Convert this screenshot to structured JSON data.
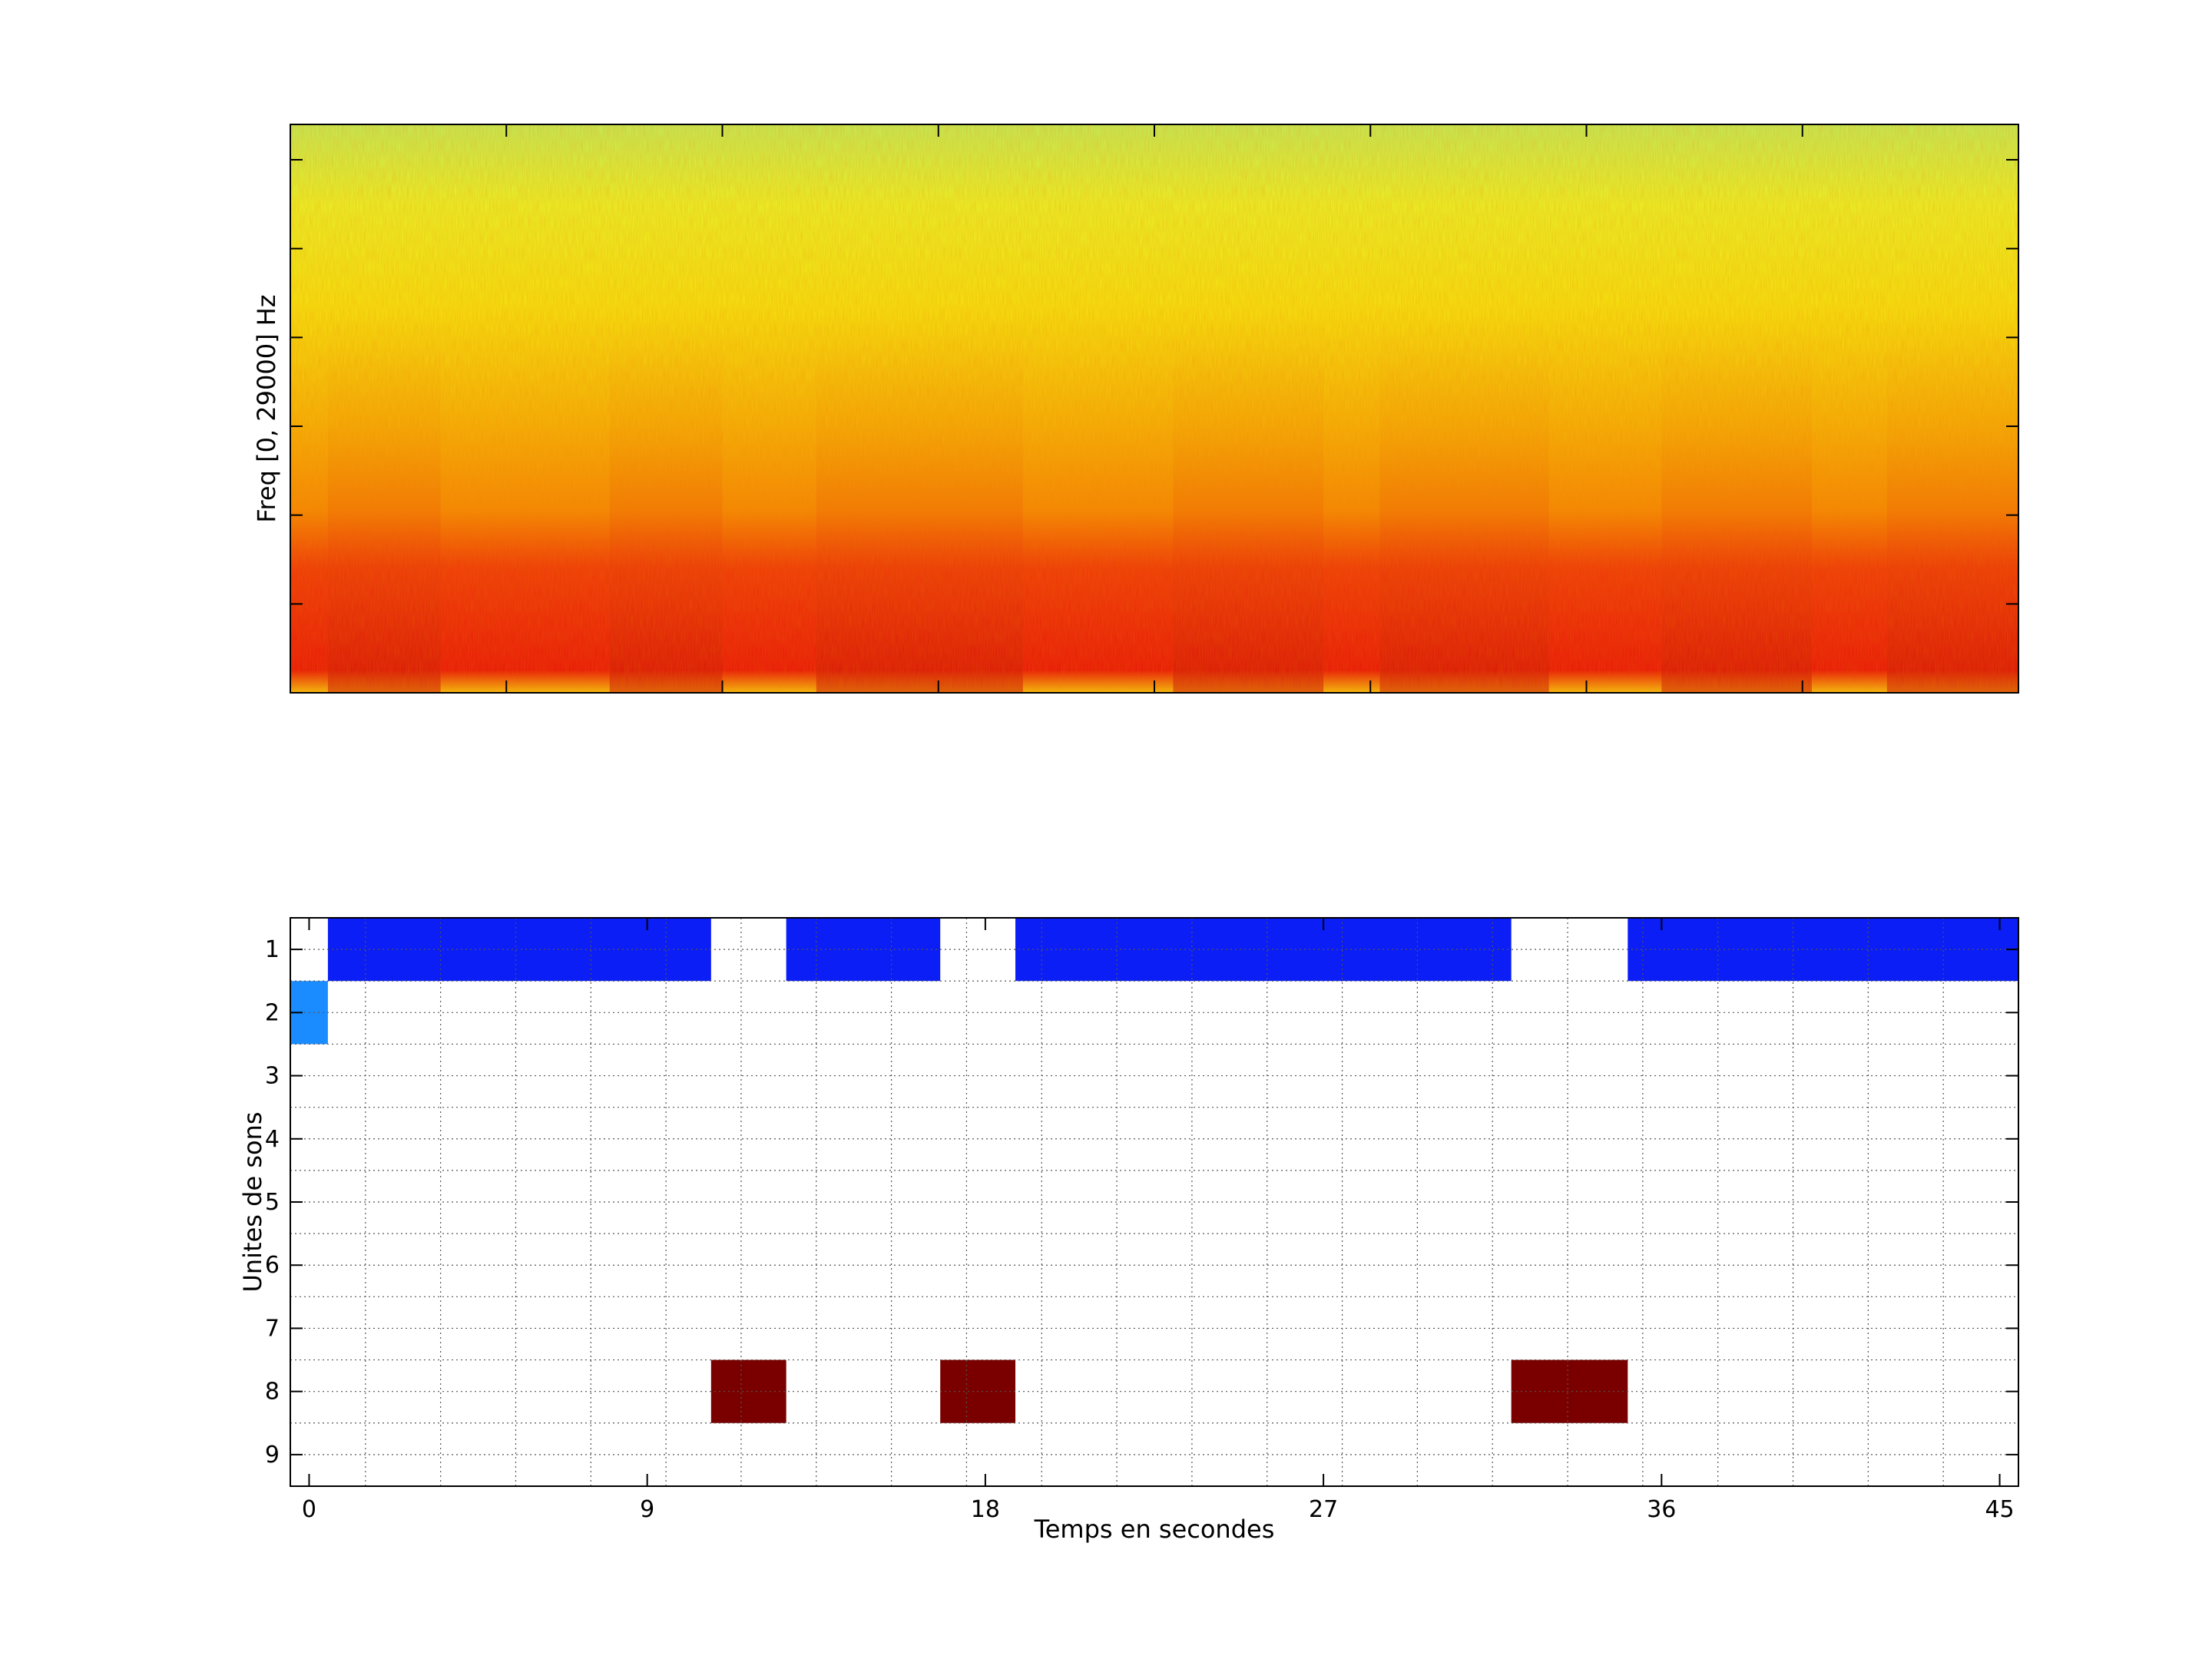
{
  "chart_data": [
    {
      "type": "heatmap",
      "title": "",
      "xlabel": "",
      "ylabel": "Freq [0, 29000] Hz",
      "ylim": [
        0,
        29000
      ],
      "colormap": "hot-yellow-green",
      "colors": {
        "high_energy": "#e8160a",
        "mid_energy": "#f58a05",
        "low_energy": "#f5f511",
        "lowest_energy": "#b8f060"
      },
      "x_tick_count": 9,
      "y_tick_count": 7,
      "grid": false,
      "description_of_pattern": [
        {
          "t_start": 0,
          "t_end": 45
        }
      ]
    },
    {
      "type": "heatmap",
      "title": "",
      "xlabel": "Temps en secondes",
      "ylabel": "Unites de sons",
      "xlim": [
        -0.5,
        45.5
      ],
      "ylim": [
        0.5,
        9.5
      ],
      "x_ticks": [
        0,
        9,
        18,
        27,
        36,
        45
      ],
      "y_ticks": [
        1,
        2,
        3,
        4,
        5,
        6,
        7,
        8,
        9
      ],
      "grid": true,
      "segments": [
        {
          "unit": 2,
          "start": -0.5,
          "end": 0.5,
          "color": "#1a8cff"
        },
        {
          "unit": 1,
          "start": 0.5,
          "end": 10.7,
          "color": "#0a1ef5"
        },
        {
          "unit": 8,
          "start": 10.7,
          "end": 12.7,
          "color": "#7a0000"
        },
        {
          "unit": 1,
          "start": 12.7,
          "end": 16.8,
          "color": "#0a1ef5"
        },
        {
          "unit": 8,
          "start": 16.8,
          "end": 18.8,
          "color": "#7a0000"
        },
        {
          "unit": 1,
          "start": 18.8,
          "end": 32.0,
          "color": "#0a1ef5"
        },
        {
          "unit": 8,
          "start": 32.0,
          "end": 35.1,
          "color": "#7a0000"
        },
        {
          "unit": 1,
          "start": 35.1,
          "end": 45.5,
          "color": "#0a1ef5"
        }
      ]
    }
  ]
}
